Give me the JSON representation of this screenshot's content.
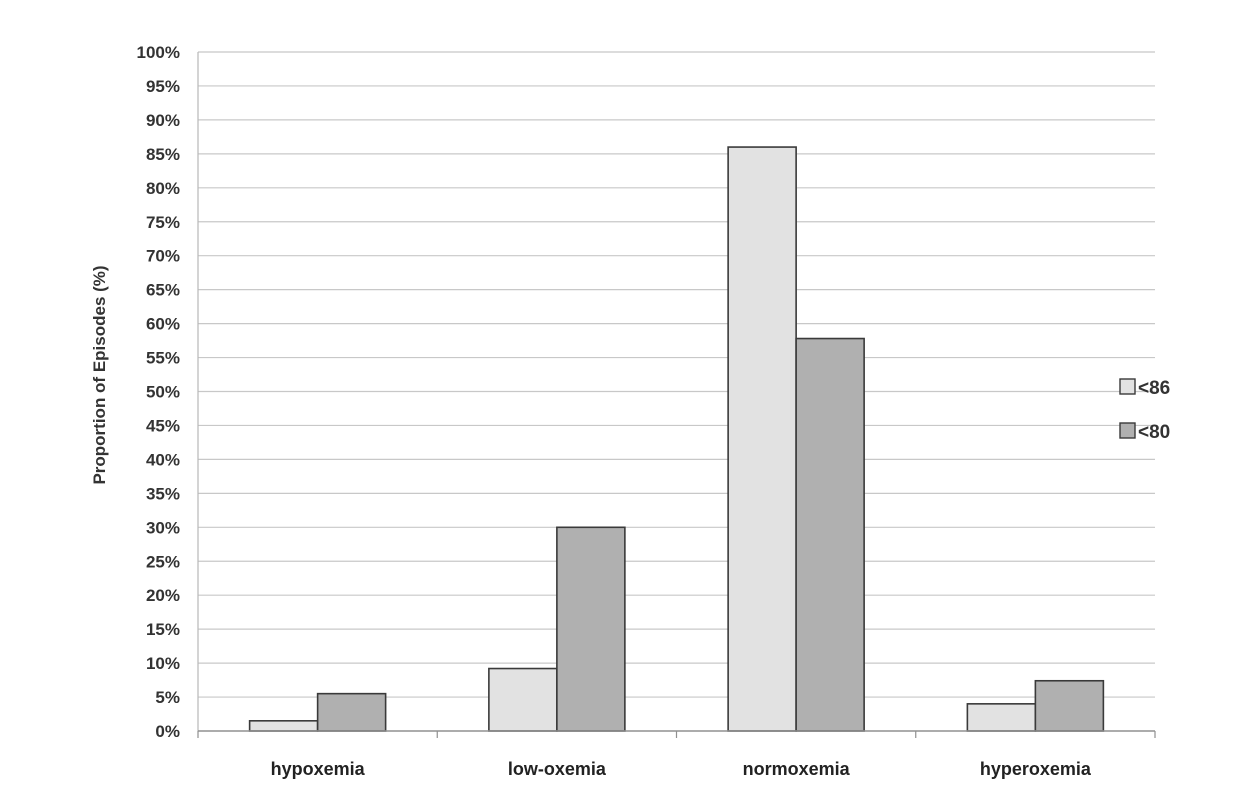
{
  "chart_data": {
    "type": "bar",
    "categories": [
      "hypoxemia",
      "low-oxemia",
      "normoxemia",
      "hyperoxemia"
    ],
    "series": [
      {
        "name": "<86",
        "values": [
          1.5,
          9.2,
          86.0,
          4.0
        ],
        "color": "#e2e2e2"
      },
      {
        "name": "<80",
        "values": [
          5.5,
          30.0,
          57.8,
          7.4
        ],
        "color": "#b0b0b0"
      }
    ],
    "ylabel": "Proportion of Episodes (%)",
    "ylim": [
      0,
      100
    ],
    "yticks": [
      "0%",
      "5%",
      "10%",
      "15%",
      "20%",
      "25%",
      "30%",
      "35%",
      "40%",
      "45%",
      "50%",
      "55%",
      "60%",
      "65%",
      "70%",
      "75%",
      "80%",
      "85%",
      "90%",
      "95%",
      "100%"
    ],
    "grid": true,
    "legend_position": "right"
  }
}
